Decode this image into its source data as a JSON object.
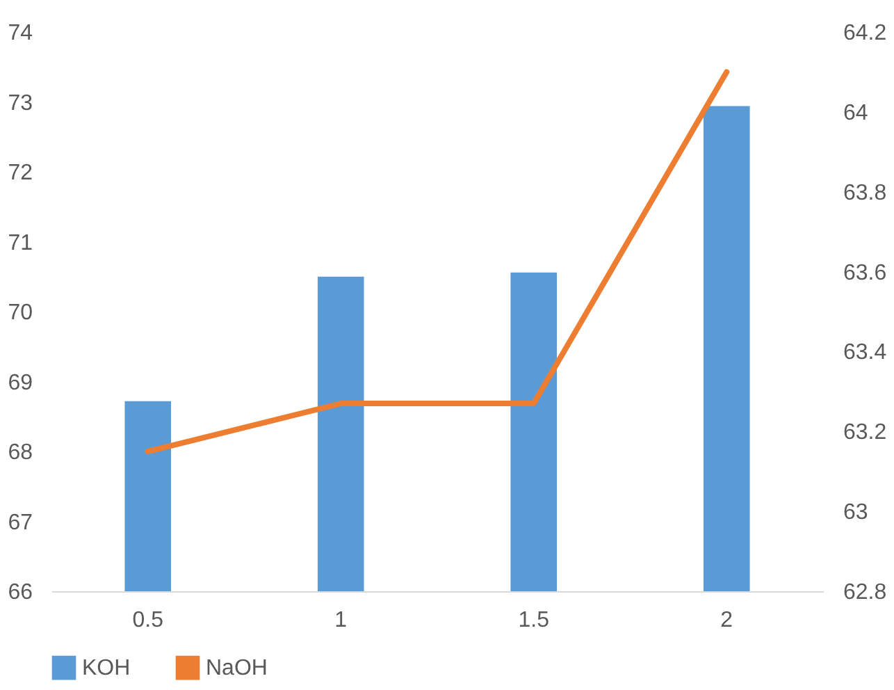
{
  "chart_data": {
    "type": "bar",
    "categories": [
      "0.5",
      "1",
      "1.5",
      "2"
    ],
    "series": [
      {
        "name": "KOH",
        "color": "#5b9bd5",
        "values": [
          68.72,
          70.5,
          70.56,
          72.94
        ]
      },
      {
        "name": "NaOH",
        "type": "line",
        "axis": "y2",
        "color": "#ed7d31",
        "values": [
          63.15,
          63.27,
          63.27,
          64.1
        ]
      }
    ],
    "ylim": [
      66,
      74
    ],
    "yticks": [
      66,
      67,
      68,
      69,
      70,
      71,
      72,
      73,
      74
    ],
    "y2lim": [
      62.8,
      64.2
    ],
    "y2ticks": [
      62.8,
      63,
      63.2,
      63.4,
      63.6,
      63.8,
      64,
      64.2
    ],
    "grid": false,
    "legend": "bottom",
    "marker": "none",
    "line_style": "solid"
  }
}
